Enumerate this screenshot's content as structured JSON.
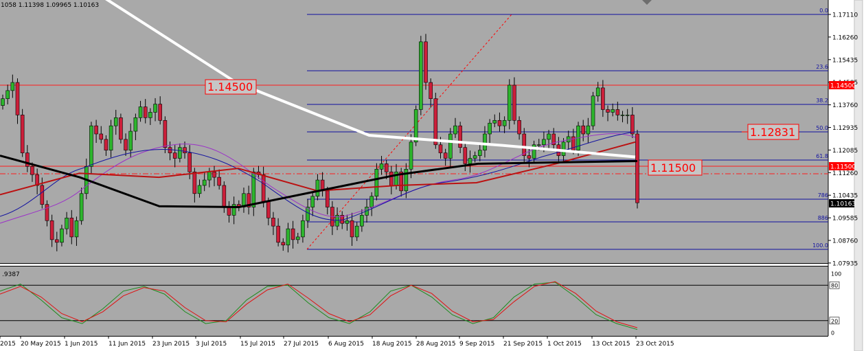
{
  "header": {
    "ohlc_text": "1058 1.11398 1.09965 1.10163"
  },
  "price_axis": {
    "labels": [
      "1.17110",
      "1.16260",
      "1.15435",
      "1.14585",
      "1.13760",
      "1.12935",
      "1.12085",
      "1.11260",
      "1.10435",
      "1.09585",
      "1.08760",
      "1.07935"
    ],
    "current_price": "1.10163",
    "level_1450_tag": "1.14500",
    "level_1150_tag": "1.11500"
  },
  "fibonacci": {
    "levels": [
      {
        "label": "0.0",
        "price": 1.1711
      },
      {
        "label": "23.6",
        "price": 1.1499
      },
      {
        "label": "38.2",
        "price": 1.1369
      },
      {
        "label": "50.0",
        "price": 1.1263
      },
      {
        "label": "61.8",
        "price": 1.116
      },
      {
        "label": "786",
        "price": 1.1022
      },
      {
        "label": "886",
        "price": 1.0933
      },
      {
        "label": "100.0",
        "price": 1.0831
      }
    ]
  },
  "annotations": [
    {
      "text": "1.14500",
      "price": 1.145
    },
    {
      "text": "1.12831",
      "price": 1.12831
    },
    {
      "text": "1.11500",
      "price": 1.115
    }
  ],
  "time_axis": {
    "labels": [
      "2015",
      "20 May 2015",
      "1 Jun 2015",
      "11 Jun 2015",
      "23 Jun 2015",
      "3 Jul 2015",
      "15 Jul 2015",
      "27 Jul 2015",
      "6 Aug 2015",
      "18 Aug 2015",
      "28 Aug 2015",
      "9 Sep 2015",
      "21 Sep 2015",
      "1 Oct 2015",
      "13 Oct 2015",
      "23 Oct 2015"
    ]
  },
  "oscillator": {
    "header_text": ".9387",
    "labels": [
      "100",
      "80",
      "20",
      "0"
    ],
    "level_high": 80,
    "level_low": 20,
    "range": [
      0,
      100
    ]
  },
  "colors": {
    "plot_bg": "#a9a9a9",
    "bull": "#2db52d",
    "bear": "#cc1f3a",
    "fib": "#1010a0",
    "red_level": "#ff1a1a",
    "sma_fast": "#1414a0",
    "sma_purple": "#9b30c8",
    "sma_red": "#bb1111",
    "sma_black": "#000000",
    "sma_white": "#ffffff"
  },
  "chart_data": {
    "type": "candlestick",
    "symbol_ohlc": [
      1.1058,
      1.11398,
      1.09965,
      1.10163
    ],
    "ylim": [
      1.0775,
      1.1775
    ],
    "x_labels": [
      "2015",
      "20 May 2015",
      "1 Jun 2015",
      "11 Jun 2015",
      "23 Jun 2015",
      "3 Jul 2015",
      "15 Jul 2015",
      "27 Jul 2015",
      "6 Aug 2015",
      "18 Aug 2015",
      "28 Aug 2015",
      "9 Sep 2015",
      "21 Sep 2015",
      "1 Oct 2015",
      "13 Oct 2015",
      "23 Oct 2015"
    ],
    "closes": [
      1.14,
      1.143,
      1.146,
      1.134,
      1.12,
      1.115,
      1.112,
      1.108,
      1.101,
      1.095,
      1.088,
      1.087,
      1.092,
      1.096,
      1.089,
      1.095,
      1.105,
      1.115,
      1.13,
      1.127,
      1.125,
      1.121,
      1.13,
      1.133,
      1.125,
      1.121,
      1.128,
      1.133,
      1.137,
      1.133,
      1.135,
      1.138,
      1.132,
      1.122,
      1.12,
      1.118,
      1.122,
      1.12,
      1.113,
      1.105,
      1.108,
      1.11,
      1.113,
      1.111,
      1.108,
      1.1,
      1.097,
      1.101,
      1.1,
      1.105,
      1.1,
      1.113,
      1.112,
      1.102,
      1.096,
      1.093,
      1.087,
      1.086,
      1.092,
      1.088,
      1.089,
      1.095,
      1.1,
      1.104,
      1.11,
      1.106,
      1.1,
      1.093,
      1.097,
      1.094,
      1.095,
      1.089,
      1.093,
      1.097,
      1.1,
      1.104,
      1.114,
      1.116,
      1.113,
      1.108,
      1.113,
      1.106,
      1.114,
      1.124,
      1.136,
      1.161,
      1.146,
      1.14,
      1.123,
      1.12,
      1.118,
      1.127,
      1.13,
      1.122,
      1.116,
      1.118,
      1.119,
      1.121,
      1.127,
      1.131,
      1.132,
      1.13,
      1.132,
      1.145,
      1.132,
      1.127,
      1.119,
      1.118,
      1.123,
      1.123,
      1.125,
      1.127,
      1.123,
      1.119,
      1.124,
      1.126,
      1.121,
      1.13,
      1.127,
      1.13,
      1.141,
      1.144,
      1.136,
      1.135,
      1.136,
      1.134,
      1.134,
      1.134,
      1.127,
      1.1016
    ],
    "series": [
      {
        "name": "MA white",
        "values": [
          1.1775,
          1.146,
          1.1265,
          1.1228,
          1.1185
        ]
      },
      {
        "name": "MA black",
        "values": [
          1.119,
          1.111,
          1.1003,
          1.1,
          1.106,
          1.112,
          1.116,
          1.1165,
          1.117
        ]
      },
      {
        "name": "MA red",
        "values": [
          1.1046,
          1.1125,
          1.111,
          1.1143,
          1.106,
          1.108,
          1.109,
          1.116,
          1.124
        ]
      },
      {
        "name": "Oscillator main",
        "values": [
          70,
          82,
          55,
          25,
          15,
          40,
          70,
          78,
          65,
          35,
          15,
          20,
          55,
          78,
          80,
          50,
          25,
          15,
          35,
          70,
          80,
          60,
          30,
          15,
          25,
          60,
          82,
          85,
          60,
          30,
          15,
          5
        ]
      },
      {
        "name": "Oscillator signal",
        "values": [
          65,
          78,
          60,
          32,
          18,
          35,
          62,
          76,
          70,
          42,
          20,
          18,
          48,
          72,
          82,
          58,
          32,
          18,
          30,
          62,
          80,
          66,
          36,
          18,
          22,
          52,
          78,
          86,
          66,
          36,
          18,
          8
        ]
      }
    ]
  }
}
